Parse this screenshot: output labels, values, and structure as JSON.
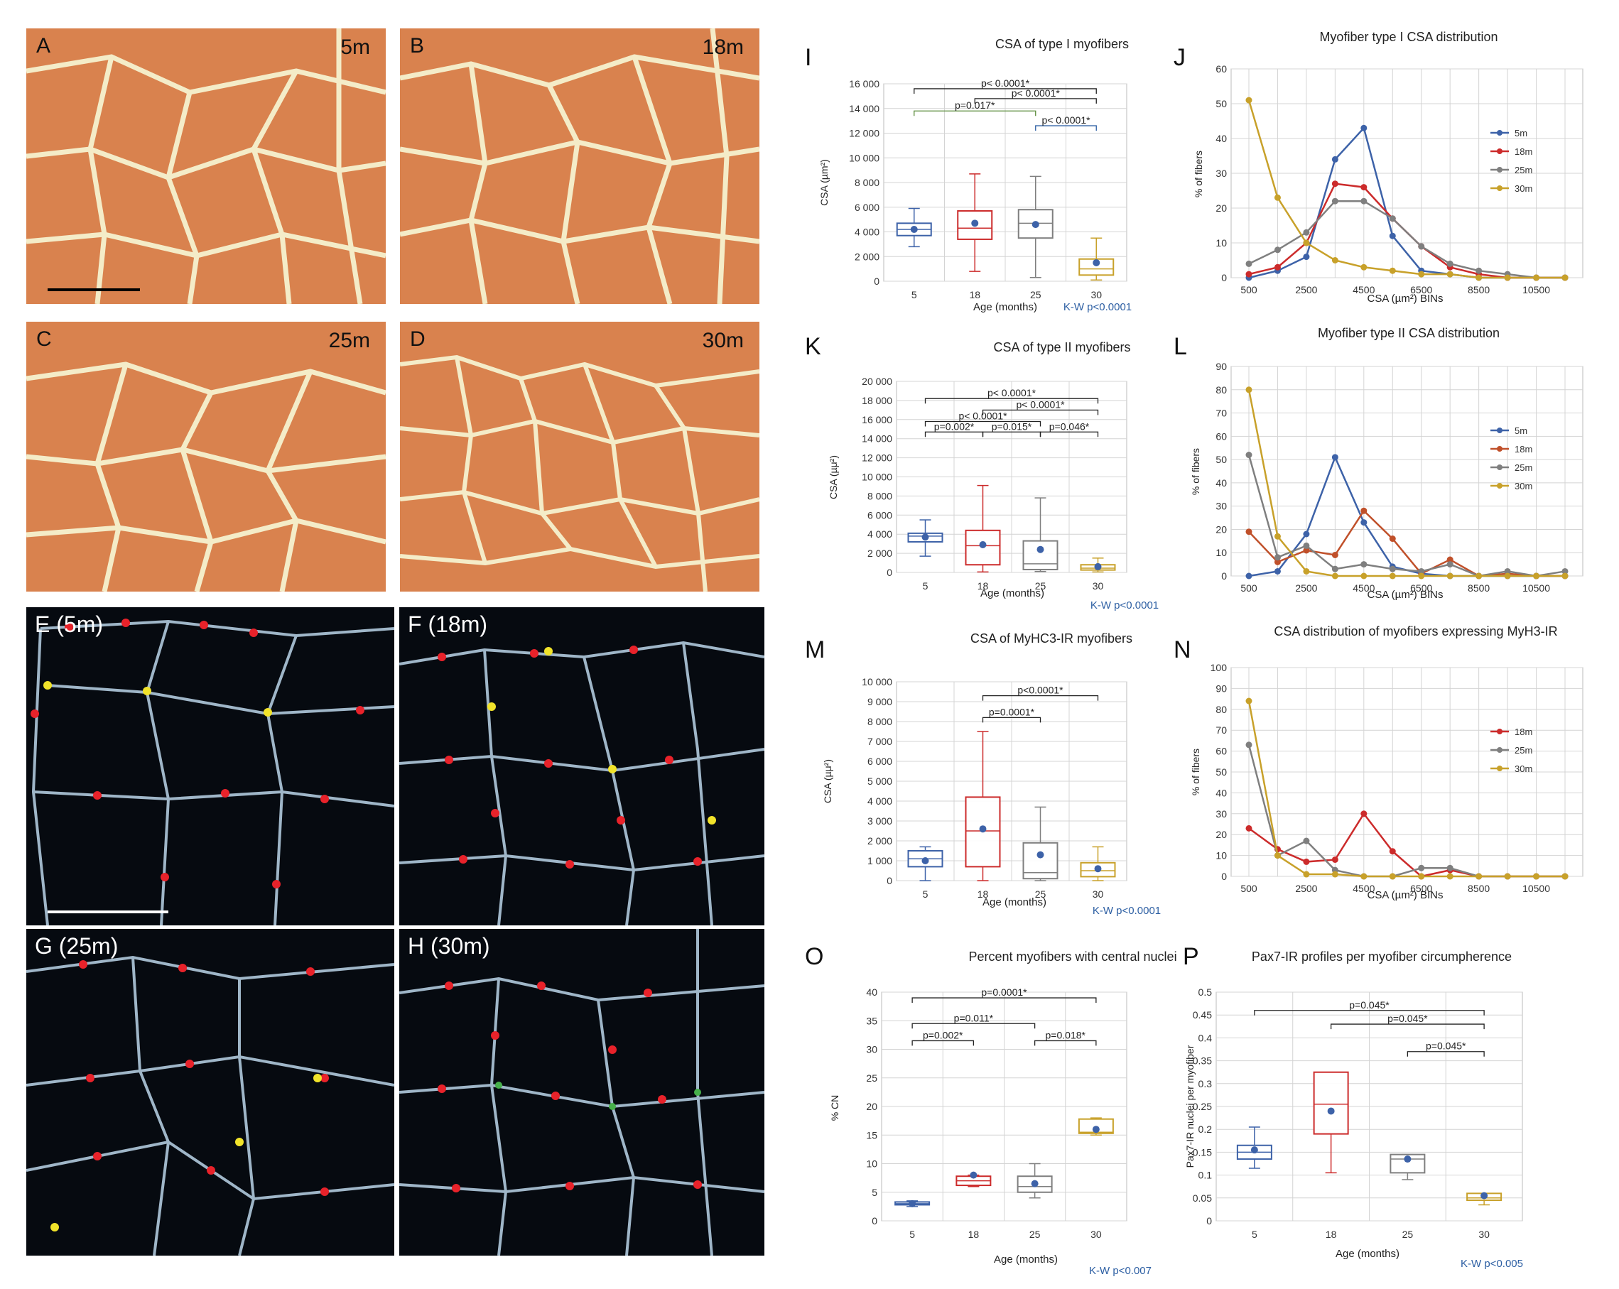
{
  "micrographs": [
    {
      "label": "A",
      "age": "5m",
      "type": "he"
    },
    {
      "label": "B",
      "age": "18m",
      "type": "he"
    },
    {
      "label": "C",
      "age": "25m",
      "type": "he"
    },
    {
      "label": "D",
      "age": "30m",
      "type": "he"
    },
    {
      "label": "E (5m)",
      "type": "fl"
    },
    {
      "label": "F (18m)",
      "type": "fl"
    },
    {
      "label": "G (25m)",
      "type": "fl"
    },
    {
      "label": "H (30m)",
      "type": "fl"
    }
  ],
  "colors": {
    "c5": "#3d62a8",
    "c18": "#cc2b2b",
    "c25": "#7f7f7f",
    "c30": "#c8a12a",
    "c18b": "#c0502a",
    "kw": "#2d5fa3",
    "green": "#5a8a3a"
  },
  "chart_data": [
    {
      "panel": "I",
      "type": "box",
      "title": "CSA of type I myofibers",
      "ylabel": "CSA (µm²)",
      "xlabel": "Age (months)",
      "categories": [
        "5",
        "18",
        "25",
        "30"
      ],
      "ylim": [
        0,
        16000
      ],
      "yticks": [
        "0",
        "2 000",
        "4 000",
        "6 000",
        "8 000",
        "10 000",
        "12 000",
        "14 000",
        "16 000"
      ],
      "boxes": [
        {
          "min": 2800,
          "q1": 3700,
          "median": 4200,
          "q3": 4700,
          "max": 5900,
          "mean": 4200
        },
        {
          "min": 800,
          "q1": 3400,
          "median": 4300,
          "q3": 5700,
          "max": 8700,
          "mean": 4700
        },
        {
          "min": 300,
          "q1": 3500,
          "median": 4700,
          "q3": 5800,
          "max": 8500,
          "mean": 4600
        },
        {
          "min": 100,
          "q1": 500,
          "median": 1000,
          "q3": 1800,
          "max": 3500,
          "mean": 1500
        }
      ],
      "annotations": [
        {
          "from": 0,
          "to": 3,
          "y": 15600,
          "text": "p< 0.0001*"
        },
        {
          "from": 1,
          "to": 3,
          "y": 14800,
          "text": "p< 0.0001*"
        },
        {
          "from": 0,
          "to": 2,
          "y": 13800,
          "text": "p=0.017*"
        },
        {
          "from": 2,
          "to": 3,
          "y": 12600,
          "text": "p< 0.0001*"
        }
      ],
      "kw": "K-W p<0.0001"
    },
    {
      "panel": "J",
      "type": "line",
      "title": "Myofiber type I CSA distribution",
      "ylabel": "% of fibers",
      "xlabel": "CSA (µm²) BINs",
      "x": [
        500,
        1500,
        2500,
        3500,
        4500,
        5500,
        6500,
        7500,
        8500,
        9500,
        10500,
        11500
      ],
      "xticks": [
        "500",
        "2500",
        "4500",
        "6500",
        "8500",
        "10500"
      ],
      "ylim": [
        0,
        60
      ],
      "yticks": [
        "0",
        "10",
        "20",
        "30",
        "40",
        "50",
        "60"
      ],
      "series": [
        {
          "name": "5m",
          "values": [
            0,
            2,
            6,
            34,
            43,
            12,
            2,
            1,
            0,
            0,
            0,
            0
          ]
        },
        {
          "name": "18m",
          "values": [
            1,
            3,
            10,
            27,
            26,
            17,
            9,
            3,
            1,
            0,
            0,
            0
          ]
        },
        {
          "name": "25m",
          "values": [
            4,
            8,
            13,
            22,
            22,
            17,
            9,
            4,
            2,
            1,
            0,
            0
          ]
        },
        {
          "name": "30m",
          "values": [
            51,
            23,
            10,
            5,
            3,
            2,
            1,
            1,
            0,
            0,
            0,
            0
          ]
        }
      ]
    },
    {
      "panel": "K",
      "type": "box",
      "title": "CSA of type II myofibers",
      "ylabel": "CSA (µμ²)",
      "xlabel": "Age (months)",
      "categories": [
        "5",
        "18",
        "25",
        "30"
      ],
      "ylim": [
        0,
        20000
      ],
      "yticks": [
        "0",
        "2 000",
        "4 000",
        "6 000",
        "8 000",
        "10 000",
        "12 000",
        "14 000",
        "16 000",
        "18 000",
        "20 000"
      ],
      "boxes": [
        {
          "min": 1700,
          "q1": 3200,
          "median": 3800,
          "q3": 4100,
          "max": 5500,
          "mean": 3700
        },
        {
          "min": 50,
          "q1": 800,
          "median": 2800,
          "q3": 4400,
          "max": 9100,
          "mean": 2900
        },
        {
          "min": 100,
          "q1": 300,
          "median": 900,
          "q3": 3300,
          "max": 7800,
          "mean": 2400
        },
        {
          "min": 50,
          "q1": 250,
          "median": 450,
          "q3": 800,
          "max": 1500,
          "mean": 600
        }
      ],
      "annotations": [
        {
          "from": 0,
          "to": 3,
          "y": 18200,
          "text": "p< 0.0001*"
        },
        {
          "from": 1,
          "to": 3,
          "y": 17000,
          "text": "p< 0.0001*"
        },
        {
          "from": 0,
          "to": 2,
          "y": 15800,
          "text": "p< 0.0001*"
        },
        {
          "from": 0,
          "to": 1,
          "y": 14700,
          "text": "p=0.002*"
        },
        {
          "from": 1,
          "to": 2,
          "y": 14700,
          "text": "p=0.015*"
        },
        {
          "from": 2,
          "to": 3,
          "y": 14700,
          "text": "p=0.046*"
        }
      ],
      "kw": "K-W p<0.0001"
    },
    {
      "panel": "L",
      "type": "line",
      "title": "Myofiber type II CSA distribution",
      "ylabel": "% of fibers",
      "xlabel": "CSA (µm²) BINs",
      "x": [
        500,
        1500,
        2500,
        3500,
        4500,
        5500,
        6500,
        7500,
        8500,
        9500,
        10500,
        11500
      ],
      "xticks": [
        "500",
        "2500",
        "4500",
        "6500",
        "8500",
        "10500"
      ],
      "ylim": [
        0,
        90
      ],
      "yticks": [
        "0",
        "10",
        "20",
        "30",
        "40",
        "50",
        "60",
        "70",
        "80",
        "90"
      ],
      "series": [
        {
          "name": "5m",
          "values": [
            0,
            2,
            18,
            51,
            23,
            4,
            1,
            0,
            0,
            0,
            0,
            0
          ]
        },
        {
          "name": "18m",
          "values": [
            19,
            6,
            11,
            9,
            28,
            16,
            1,
            7,
            0,
            1,
            0,
            0
          ]
        },
        {
          "name": "25m",
          "values": [
            52,
            8,
            13,
            3,
            5,
            3,
            2,
            5,
            0,
            2,
            0,
            2
          ]
        },
        {
          "name": "30m",
          "values": [
            80,
            17,
            2,
            0,
            0,
            0,
            0,
            0,
            0,
            0,
            0,
            0
          ]
        }
      ]
    },
    {
      "panel": "M",
      "type": "box",
      "title": "CSA of MyHC3-IR myofibers",
      "ylabel": "CSA (µμ²)",
      "xlabel": "Age (months)",
      "categories": [
        "5",
        "18",
        "25",
        "30"
      ],
      "ylim": [
        0,
        10000
      ],
      "yticks": [
        "0",
        "1 000",
        "2 000",
        "3 000",
        "4 000",
        "5 000",
        "6 000",
        "7 000",
        "8 000",
        "9 000",
        "10 000"
      ],
      "boxes": [
        {
          "min": 0,
          "q1": 700,
          "median": 1100,
          "q3": 1500,
          "max": 1700,
          "mean": 1000
        },
        {
          "min": 0,
          "q1": 700,
          "median": 2500,
          "q3": 4200,
          "max": 7500,
          "mean": 2600
        },
        {
          "min": 0,
          "q1": 100,
          "median": 400,
          "q3": 1900,
          "max": 3700,
          "mean": 1300
        },
        {
          "min": 0,
          "q1": 200,
          "median": 500,
          "q3": 900,
          "max": 1700,
          "mean": 600
        }
      ],
      "annotations": [
        {
          "from": 1,
          "to": 3,
          "y": 9300,
          "text": "p<0.0001*"
        },
        {
          "from": 1,
          "to": 2,
          "y": 8200,
          "text": "p=0.0001*"
        }
      ],
      "kw": "K-W p<0.0001"
    },
    {
      "panel": "N",
      "type": "line",
      "title": "CSA distribution of myofibers expressing MyH3-IR",
      "ylabel": "% of fibers",
      "xlabel": "CSA (µm²) BINs",
      "x": [
        500,
        1500,
        2500,
        3500,
        4500,
        5500,
        6500,
        7500,
        8500,
        9500,
        10500,
        11500
      ],
      "xticks": [
        "500",
        "2500",
        "4500",
        "6500",
        "8500",
        "10500"
      ],
      "ylim": [
        0,
        100
      ],
      "yticks": [
        "0",
        "10",
        "20",
        "30",
        "40",
        "50",
        "60",
        "70",
        "80",
        "90",
        "100"
      ],
      "series": [
        {
          "name": "18m",
          "values": [
            23,
            13,
            7,
            8,
            30,
            12,
            0,
            3,
            0,
            0,
            0,
            0
          ]
        },
        {
          "name": "25m",
          "values": [
            63,
            10,
            17,
            3,
            0,
            0,
            4,
            4,
            0,
            0,
            0,
            0
          ]
        },
        {
          "name": "30m",
          "values": [
            84,
            10,
            1,
            1,
            0,
            0,
            0,
            0,
            0,
            0,
            0,
            0
          ]
        }
      ]
    },
    {
      "panel": "O",
      "type": "box",
      "title": "Percent myofibers with central nuclei",
      "ylabel": "% CN",
      "xlabel": "Age (months)",
      "categories": [
        "5",
        "18",
        "25",
        "30"
      ],
      "ylim": [
        0,
        40
      ],
      "yticks": [
        "0",
        "5",
        "10",
        "15",
        "20",
        "25",
        "30",
        "35",
        "40"
      ],
      "boxes": [
        {
          "min": 2.5,
          "q1": 2.8,
          "median": 3.0,
          "q3": 3.3,
          "max": 3.5,
          "mean": 3.0
        },
        {
          "min": 6.0,
          "q1": 6.2,
          "median": 7.0,
          "q3": 7.8,
          "max": 8.0,
          "mean": 8.0
        },
        {
          "min": 4.0,
          "q1": 5.0,
          "median": 6.0,
          "q3": 7.8,
          "max": 10.0,
          "mean": 6.5
        },
        {
          "min": 15.0,
          "q1": 15.3,
          "median": 15.5,
          "q3": 17.8,
          "max": 18.0,
          "mean": 16.0
        }
      ],
      "annotations": [
        {
          "from": 0,
          "to": 3,
          "y": 39,
          "text": "p=0.0001*"
        },
        {
          "from": 0,
          "to": 2,
          "y": 34.5,
          "text": "p=0.011*"
        },
        {
          "from": 0,
          "to": 1,
          "y": 31.5,
          "text": "p=0.002*"
        },
        {
          "from": 2,
          "to": 3,
          "y": 31.5,
          "text": "p=0.018*"
        }
      ],
      "kw": "K-W p<0.007"
    },
    {
      "panel": "P",
      "type": "box",
      "title": "Pax7-IR profiles per myofiber circumpherence",
      "ylabel": "Pax7-IR nuclei per myofiber",
      "xlabel": "Age (months)",
      "categories": [
        "5",
        "18",
        "25",
        "30"
      ],
      "ylim": [
        0,
        0.5
      ],
      "yticks": [
        "0",
        "0.05",
        "0.1",
        "0.15",
        "0.2",
        "0.25",
        "0.3",
        "0.35",
        "0.4",
        "0.45",
        "0.5"
      ],
      "boxes": [
        {
          "min": 0.115,
          "q1": 0.135,
          "median": 0.15,
          "q3": 0.165,
          "max": 0.205,
          "mean": 0.155
        },
        {
          "min": 0.105,
          "q1": 0.19,
          "median": 0.255,
          "q3": 0.325,
          "max": 0.325,
          "mean": 0.24
        },
        {
          "min": 0.09,
          "q1": 0.105,
          "median": 0.135,
          "q3": 0.145,
          "max": 0.145,
          "mean": 0.135
        },
        {
          "min": 0.035,
          "q1": 0.045,
          "median": 0.05,
          "q3": 0.06,
          "max": 0.06,
          "mean": 0.055
        }
      ],
      "annotations": [
        {
          "from": 0,
          "to": 3,
          "y": 0.46,
          "text": "p=0.045*"
        },
        {
          "from": 1,
          "to": 3,
          "y": 0.43,
          "text": "p=0.045*"
        },
        {
          "from": 2,
          "to": 3,
          "y": 0.37,
          "text": "p=0.045*"
        }
      ],
      "kw": "K-W p<0.005"
    }
  ]
}
